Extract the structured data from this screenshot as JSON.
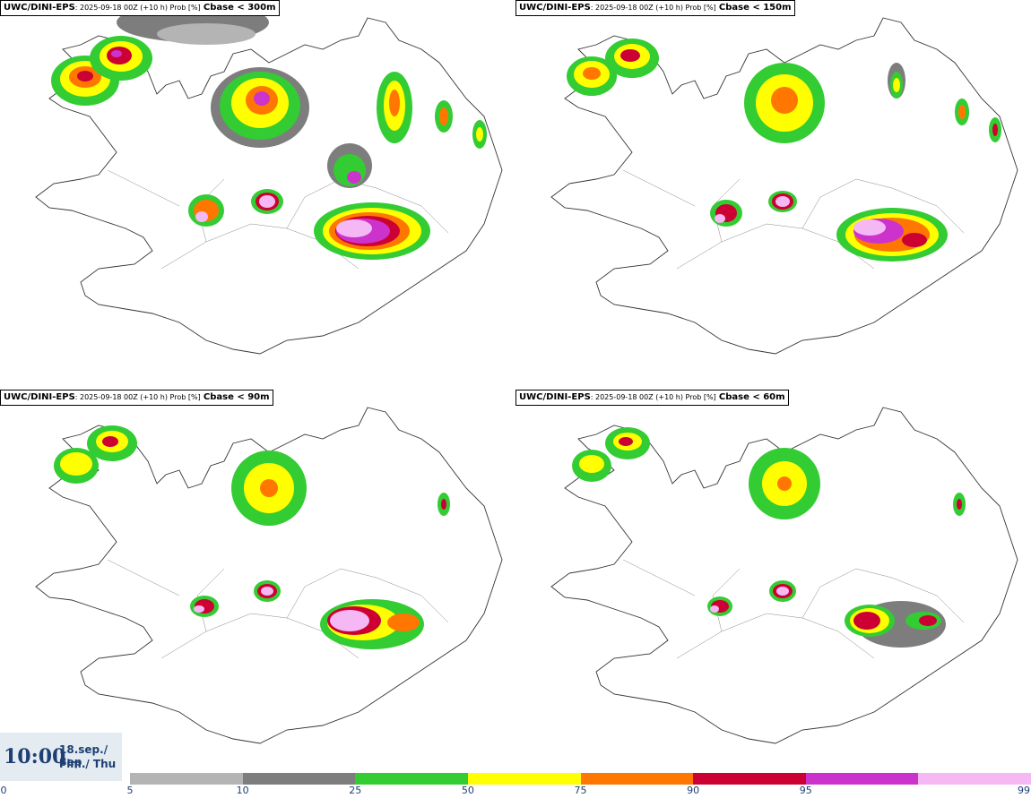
{
  "panels": [
    {
      "model": "UWC/DINI-EPS",
      "run": ": 2025-09-18 00Z (+10 h) Prob [%]",
      "field": "Cbase < 300m"
    },
    {
      "model": "UWC/DINI-EPS",
      "run": ": 2025-09-18 00Z (+10 h) Prob [%]",
      "field": "Cbase < 150m"
    },
    {
      "model": "UWC/DINI-EPS",
      "run": ": 2025-09-18 00Z (+10 h) Prob [%]",
      "field": "Cbase < 90m"
    },
    {
      "model": "UWC/DINI-EPS",
      "run": ": 2025-09-18 00Z (+10 h) Prob [%]",
      "field": "Cbase < 60m"
    }
  ],
  "valid_time": {
    "time": "10:00",
    "date": "18.sep./ Sep",
    "day": "Fim./ Thu"
  },
  "colorbar": {
    "ticks": [
      "0",
      "5",
      "10",
      "25",
      "50",
      "75",
      "90",
      "95",
      "99"
    ],
    "colors": [
      "#b4b4b4",
      "#7d7d7d",
      "#33cc33",
      "#ffff00",
      "#ff7700",
      "#cc0033",
      "#cc33cc",
      "#f5b8f5"
    ]
  }
}
